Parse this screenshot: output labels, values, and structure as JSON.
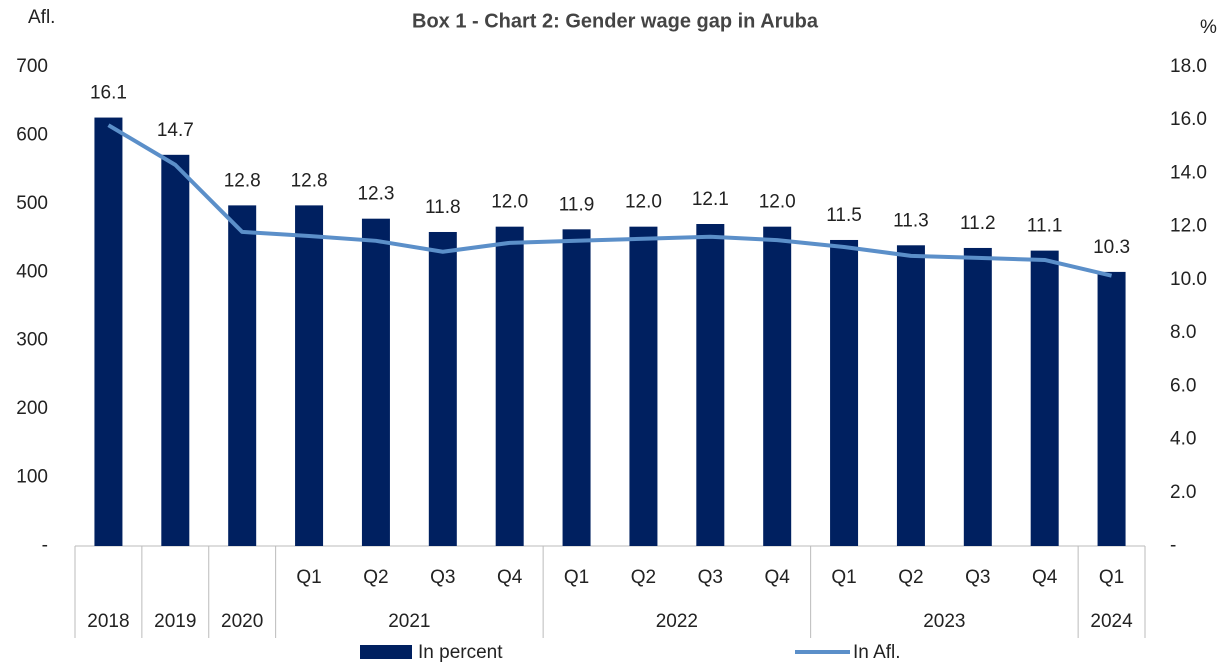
{
  "chart_data": {
    "type": "bar_line",
    "title": "Box 1 - Chart 2: Gender wage gap in Aruba",
    "y_label": "Afl.",
    "y2_label": "%",
    "categories": [
      null,
      null,
      null,
      "Q1",
      "Q2",
      "Q3",
      "Q4",
      "Q1",
      "Q2",
      "Q3",
      "Q4",
      "Q1",
      "Q2",
      "Q3",
      "Q4",
      "Q1"
    ],
    "category_groups": [
      {
        "label": "2018",
        "count": 1
      },
      {
        "label": "2019",
        "count": 1
      },
      {
        "label": "2020",
        "count": 1
      },
      {
        "label": "2021",
        "count": 4
      },
      {
        "label": "2022",
        "count": 4
      },
      {
        "label": "2023",
        "count": 4
      },
      {
        "label": "2024",
        "count": 1
      }
    ],
    "series": [
      {
        "name": "In percent",
        "kind": "bar",
        "axis": "y2",
        "color": "#002060",
        "values": [
          16.1,
          14.7,
          12.8,
          12.8,
          12.3,
          11.8,
          12.0,
          11.9,
          12.0,
          12.1,
          12.0,
          11.5,
          11.3,
          11.2,
          11.1,
          10.3
        ],
        "value_labels": [
          "16.1",
          "14.7",
          "12.8",
          "12.8",
          "12.3",
          "11.8",
          "12.0",
          "11.9",
          "12.0",
          "12.1",
          "12.0",
          "11.5",
          "11.3",
          "11.2",
          "11.1",
          "10.3"
        ]
      },
      {
        "name": "In Afl.",
        "kind": "line",
        "axis": "y",
        "color": "#5b8fc9",
        "values": [
          615,
          557,
          459,
          453,
          446,
          430,
          443,
          446,
          449,
          452,
          447,
          437,
          424,
          421,
          418,
          395
        ]
      }
    ],
    "ylim": [
      0,
      700
    ],
    "yticks": [
      {
        "value": 0,
        "label": "-"
      },
      100,
      200,
      300,
      400,
      500,
      600,
      700
    ],
    "y2lim": [
      0,
      18
    ],
    "y2ticks": [
      {
        "value": 0,
        "label": "-"
      },
      {
        "value": 2,
        "label": "2.0"
      },
      {
        "value": 4,
        "label": "4.0"
      },
      {
        "value": 6,
        "label": "6.0"
      },
      {
        "value": 8,
        "label": "8.0"
      },
      {
        "value": 10,
        "label": "10.0"
      },
      {
        "value": 12,
        "label": "12.0"
      },
      {
        "value": 14,
        "label": "14.0"
      },
      {
        "value": 16,
        "label": "16.0"
      },
      {
        "value": 18,
        "label": "18.0"
      }
    ]
  }
}
